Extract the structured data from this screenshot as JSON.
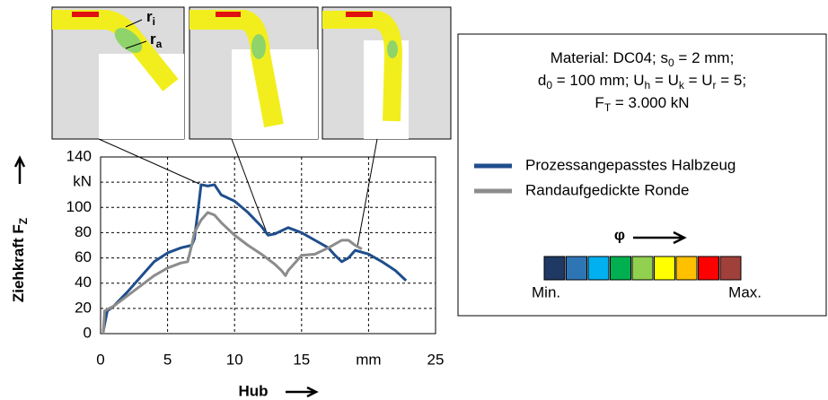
{
  "chart_data": {
    "type": "line",
    "xaxis_label": "Hub",
    "yaxis_label": "Ziehkraft F",
    "yaxis_label_sub": "Z",
    "xlim": [
      0,
      25
    ],
    "ylim": [
      0,
      140
    ],
    "xticks": [
      0,
      5,
      10,
      15,
      {
        "value": 20,
        "label": "mm"
      },
      25
    ],
    "yticks": [
      0,
      20,
      40,
      60,
      80,
      100,
      {
        "value": 120,
        "label": "kN"
      },
      140
    ],
    "grid": true,
    "series": [
      {
        "name": "Prozessangepasstes Halbzeug",
        "color": "#1f4e8c",
        "x": [
          0.2,
          0.5,
          1,
          2,
          3,
          4,
          5,
          6,
          6.8,
          7,
          7.3,
          7.5,
          8,
          8.5,
          9,
          10,
          11,
          12,
          12.5,
          13,
          14,
          15,
          16,
          17,
          17.5,
          18,
          18.5,
          19,
          20,
          21,
          22,
          22.8
        ],
        "values": [
          2,
          18,
          22,
          33,
          45,
          57,
          64,
          68,
          70,
          75,
          100,
          118,
          117,
          118,
          110,
          105,
          96,
          85,
          78,
          79,
          84,
          80,
          74,
          68,
          62,
          57,
          60,
          66,
          63,
          57,
          50,
          42
        ]
      },
      {
        "name": "Randaufgedickte Ronde",
        "color": "#8c8c8c",
        "x": [
          0.2,
          0.3,
          1,
          2,
          3,
          4,
          5,
          6,
          6.5,
          6.8,
          7,
          7.5,
          8,
          8.5,
          9,
          10,
          11,
          12,
          13,
          13.5,
          13.8,
          14,
          14.5,
          15,
          16,
          17,
          18,
          18.5,
          19,
          19.5
        ],
        "values": [
          0,
          18,
          22,
          30,
          38,
          46,
          52,
          56,
          57,
          70,
          80,
          90,
          96,
          94,
          88,
          78,
          70,
          63,
          55,
          50,
          46,
          50,
          56,
          62,
          63,
          68,
          74,
          74,
          70,
          67
        ]
      }
    ],
    "info_lines": [
      [
        {
          "t": "Material: DC04; s"
        },
        {
          "sub": "0"
        },
        {
          "t": " = 2 mm;"
        }
      ],
      [
        {
          "t": "d"
        },
        {
          "sub": "0"
        },
        {
          "t": " = 100 mm; U"
        },
        {
          "sub": "h"
        },
        {
          "t": " = U"
        },
        {
          "sub": "k"
        },
        {
          "t": " = U"
        },
        {
          "sub": "r"
        },
        {
          "t": " = 5;"
        }
      ],
      [
        {
          "t": "F"
        },
        {
          "sub": "T"
        },
        {
          "t": " = 3.000 kN"
        }
      ]
    ],
    "scale_label": "φ",
    "scale_min": "Min.",
    "scale_max": "Max.",
    "scale_colors": [
      "#1f3864",
      "#2e75b6",
      "#00b0f0",
      "#00b050",
      "#92d050",
      "#ffff00",
      "#ffc000",
      "#ff0000",
      "#a0403a"
    ],
    "inset_labels": [
      {
        "t": "r",
        "sub": "i"
      },
      {
        "t": "r",
        "sub": "a"
      }
    ]
  }
}
